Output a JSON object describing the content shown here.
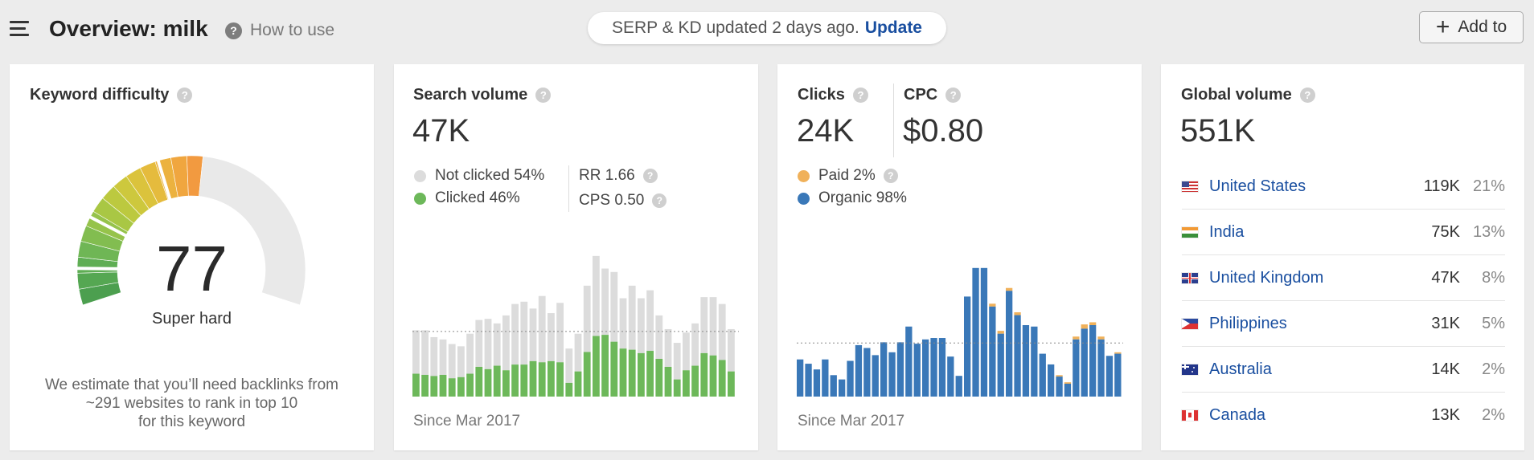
{
  "header": {
    "title": "Overview: milk",
    "how_to_use": "How to use",
    "serp_status": "SERP & KD updated 2 days ago.",
    "update_link": "Update",
    "add_to": "Add to"
  },
  "kd": {
    "title": "Keyword difficulty",
    "score": "77",
    "level": "Super hard",
    "score_fraction": 0.77,
    "desc_line1": "We estimate that you’ll need backlinks from",
    "desc_line2": "~291 websites to rank in top 10",
    "desc_line3": "for this keyword"
  },
  "search_volume": {
    "title": "Search volume",
    "value": "47K",
    "not_clicked": "Not clicked 54%",
    "clicked": "Clicked 46%",
    "rr": "RR 1.66",
    "cps": "CPS 0.50",
    "since": "Since Mar 2017",
    "colors": {
      "not_clicked": "#dcdcdc",
      "clicked": "#6db85a"
    }
  },
  "clicks": {
    "title": "Clicks",
    "value": "24K",
    "cpc_title": "CPC",
    "cpc_value": "$0.80",
    "paid": "Paid 2%",
    "organic": "Organic 98%",
    "since": "Since Mar 2017",
    "colors": {
      "paid": "#f0b15a",
      "organic": "#3a78b8"
    }
  },
  "global_volume": {
    "title": "Global volume",
    "value": "551K",
    "countries": [
      {
        "name": "United States",
        "volume": "119K",
        "pct": "21%",
        "flag": "us-flag"
      },
      {
        "name": "India",
        "volume": "75K",
        "pct": "13%",
        "flag": "india-flag"
      },
      {
        "name": "United Kingdom",
        "volume": "47K",
        "pct": "8%",
        "flag": "uk-flag"
      },
      {
        "name": "Philippines",
        "volume": "31K",
        "pct": "5%",
        "flag": "philippines-flag"
      },
      {
        "name": "Australia",
        "volume": "14K",
        "pct": "2%",
        "flag": "australia-flag"
      },
      {
        "name": "Canada",
        "volume": "13K",
        "pct": "2%",
        "flag": "canada-flag"
      }
    ]
  },
  "chart_data": [
    {
      "type": "bar",
      "name": "search-volume-history",
      "series": [
        {
          "name": "Clicked",
          "values": [
            40,
            38,
            36,
            38,
            32,
            34,
            40,
            52,
            48,
            54,
            46,
            56,
            56,
            62,
            60,
            62,
            60,
            24,
            44,
            78,
            106,
            108,
            96,
            84,
            82,
            76,
            80,
            66,
            52,
            30,
            46,
            54,
            76,
            72,
            64,
            44
          ]
        },
        {
          "name": "Not clicked",
          "values": [
            76,
            78,
            68,
            62,
            60,
            54,
            70,
            82,
            88,
            74,
            96,
            106,
            110,
            92,
            116,
            84,
            104,
            60,
            66,
            116,
            140,
            116,
            122,
            88,
            112,
            96,
            106,
            76,
            66,
            64,
            66,
            74,
            98,
            102,
            98,
            74
          ]
        }
      ],
      "average_line": 114,
      "ylim": [
        0,
        250
      ]
    },
    {
      "type": "bar",
      "name": "clicks-history",
      "series": [
        {
          "name": "Organic",
          "values": [
            52,
            46,
            38,
            52,
            30,
            24,
            50,
            72,
            68,
            58,
            76,
            62,
            76,
            98,
            74,
            80,
            82,
            82,
            56,
            29,
            140,
            180,
            180,
            126,
            88,
            148,
            114,
            100,
            98,
            60,
            45,
            28,
            18,
            80,
            95,
            100,
            80,
            57,
            60
          ]
        },
        {
          "name": "Paid",
          "values": [
            0,
            0,
            0,
            0,
            0,
            0,
            0,
            0,
            0,
            0,
            0,
            0,
            0,
            0,
            0,
            0,
            0,
            0,
            0,
            0,
            0,
            0,
            0,
            4,
            4,
            4,
            4,
            0,
            0,
            0,
            0,
            2,
            2,
            4,
            6,
            4,
            4,
            0,
            2
          ]
        }
      ],
      "average_line": 75,
      "ylim": [
        0,
        200
      ]
    }
  ]
}
